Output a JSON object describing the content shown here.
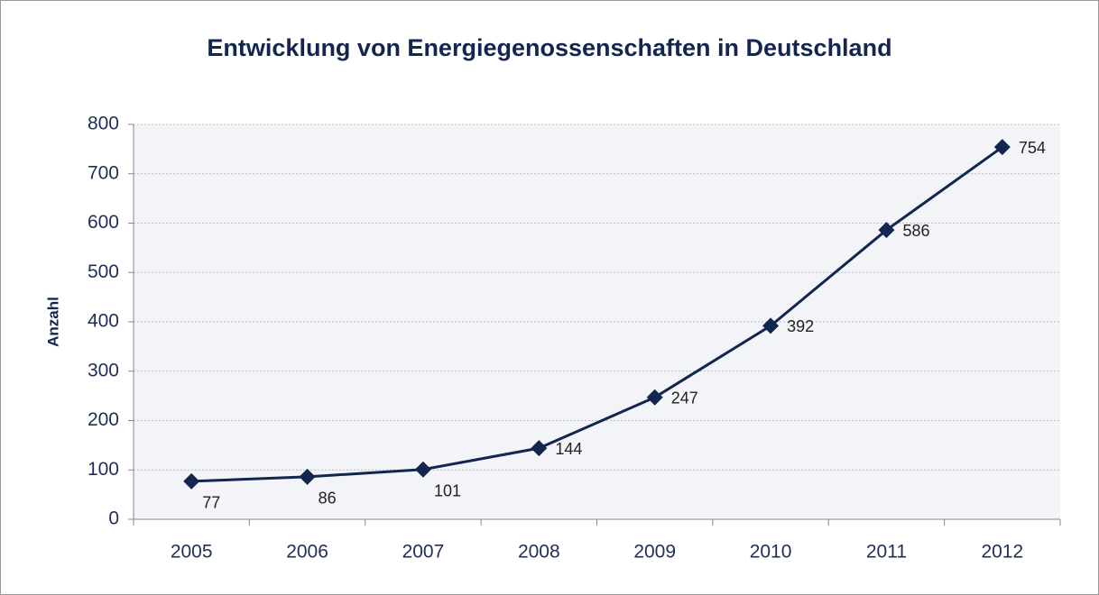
{
  "chart_data": {
    "type": "line",
    "title": "Entwicklung von Energiegenossenschaften in Deutschland",
    "y_label": "Anzahl",
    "categories": [
      "2005",
      "2006",
      "2007",
      "2008",
      "2009",
      "2010",
      "2011",
      "2012"
    ],
    "values": [
      77,
      86,
      101,
      144,
      247,
      392,
      586,
      754
    ],
    "color": "#13264f",
    "ylim": [
      0,
      800
    ],
    "yticks": [
      0,
      100,
      200,
      300,
      400,
      500,
      600,
      700,
      800
    ],
    "grid": true
  }
}
